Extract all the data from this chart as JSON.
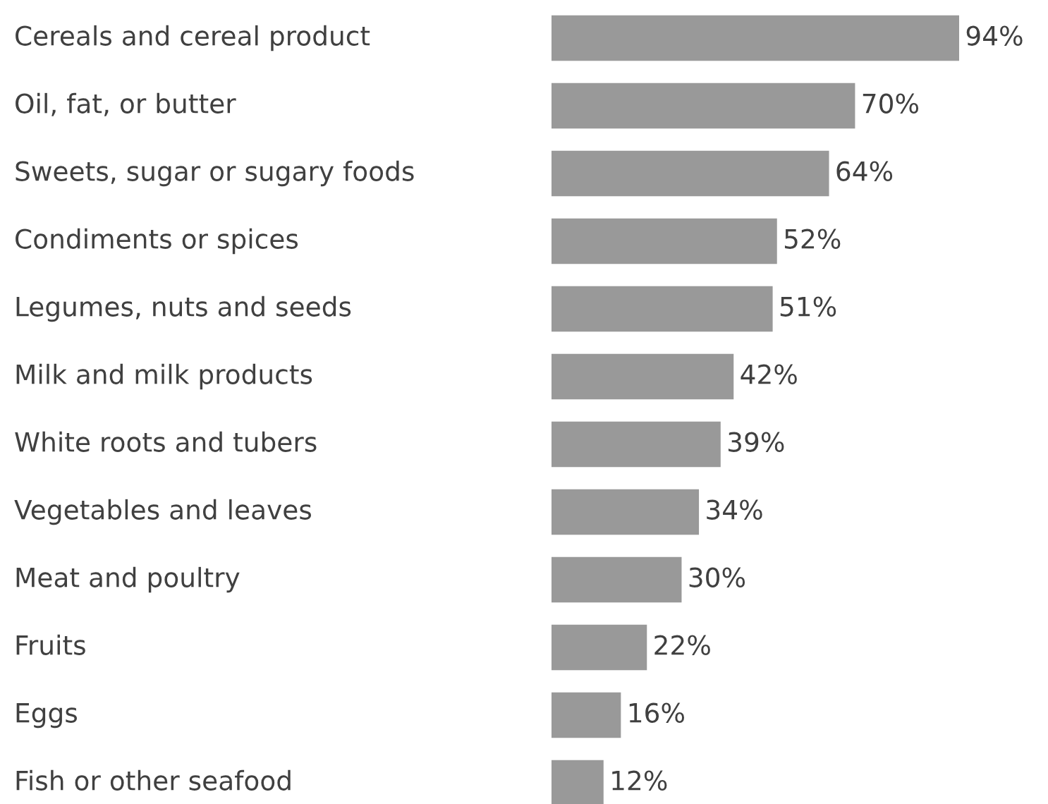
{
  "chart_data": {
    "type": "bar",
    "orientation": "horizontal",
    "categories": [
      "Cereals and cereal product",
      "Oil, fat, or butter",
      "Sweets, sugar or sugary foods",
      "Condiments or spices",
      "Legumes, nuts and seeds",
      "Milk and milk products",
      "White roots and tubers",
      "Vegetables and leaves",
      "Meat and poultry",
      "Fruits",
      "Eggs",
      "Fish or other seafood"
    ],
    "values": [
      94,
      70,
      64,
      52,
      51,
      42,
      39,
      34,
      30,
      22,
      16,
      12
    ],
    "value_labels": [
      "94%",
      "70%",
      "64%",
      "52%",
      "51%",
      "42%",
      "39%",
      "34%",
      "30%",
      "22%",
      "16%",
      "12%"
    ],
    "color": "#999999"
  }
}
